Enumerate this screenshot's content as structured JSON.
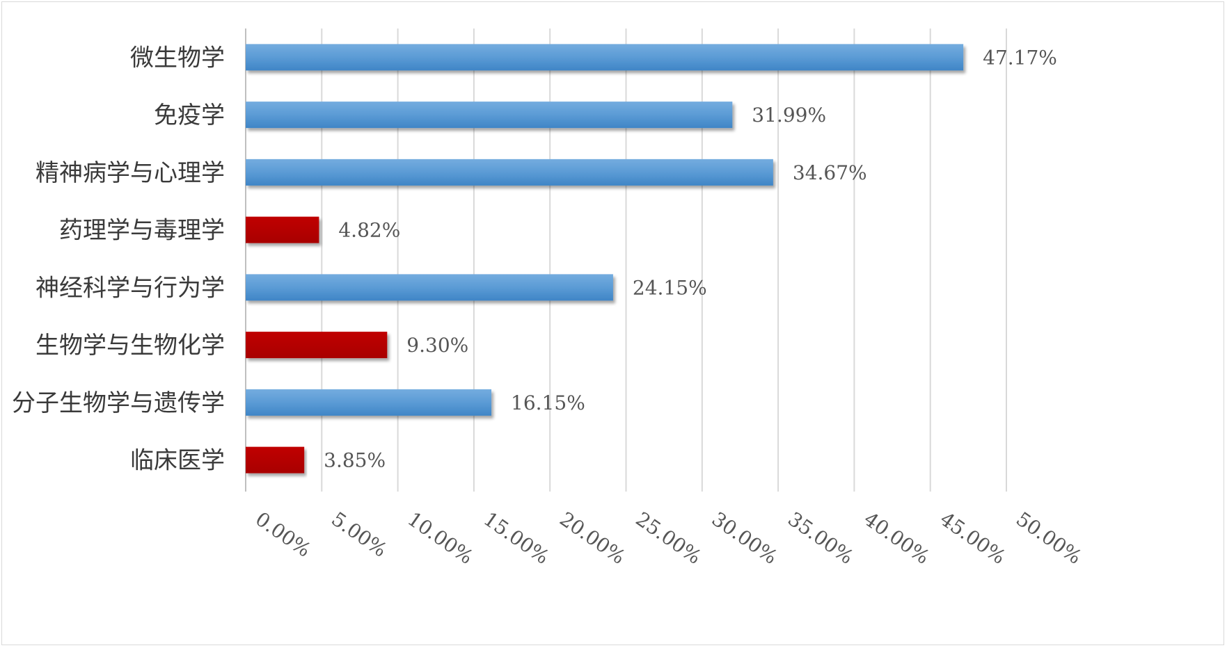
{
  "chart_data": {
    "type": "bar",
    "orientation": "horizontal",
    "categories": [
      "微生物学",
      "免疫学",
      "精神病学与心理学",
      "药理学与毒理学",
      "神经科学与行为学",
      "生物学与生物化学",
      "分子生物学与遗传学",
      "临床医学"
    ],
    "values": [
      47.17,
      31.99,
      34.67,
      4.82,
      24.15,
      9.3,
      16.15,
      3.85
    ],
    "value_labels": [
      "47.17%",
      "31.99%",
      "34.67%",
      "4.82%",
      "24.15%",
      "9.30%",
      "16.15%",
      "3.85%"
    ],
    "bar_colors": [
      "#5b9bd5",
      "#5b9bd5",
      "#5b9bd5",
      "#c00000",
      "#5b9bd5",
      "#c00000",
      "#5b9bd5",
      "#c00000"
    ],
    "xlim": [
      0,
      50
    ],
    "x_ticks": [
      0,
      5,
      10,
      15,
      20,
      25,
      30,
      35,
      40,
      45,
      50
    ],
    "x_tick_labels": [
      "0.00%",
      "5.00%",
      "10.00%",
      "15.00%",
      "20.00%",
      "25.00%",
      "30.00%",
      "35.00%",
      "40.00%",
      "45.00%",
      "50.00%"
    ],
    "grid": true,
    "legend": false,
    "title": "",
    "xlabel": "",
    "ylabel": ""
  }
}
